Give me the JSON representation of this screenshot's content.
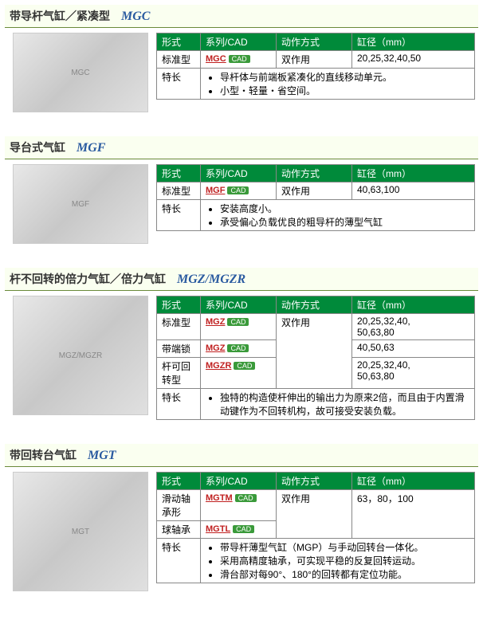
{
  "headers": {
    "type": "形式",
    "series": "系列/CAD",
    "action": "动作方式",
    "bore": "缸径（mm）",
    "features": "特长"
  },
  "cad_label": "CAD",
  "action_double": "双作用",
  "sections": [
    {
      "title": "带导杆气缸／紧凑型",
      "model": "MGC",
      "img_label": "MGC",
      "img_tall": false,
      "rows": [
        {
          "type": "标准型",
          "series": "MGC",
          "action_span": 1,
          "bore": "20,25,32,40,50"
        }
      ],
      "features": [
        "导杆体与前端板紧凑化的直线移动单元。",
        "小型・轻量・省空间。"
      ]
    },
    {
      "title": "导台式气缸",
      "model": "MGF",
      "img_label": "MGF",
      "img_tall": false,
      "rows": [
        {
          "type": "标准型",
          "series": "MGF",
          "action_span": 1,
          "bore": "40,63,100"
        }
      ],
      "features": [
        "安装高度小。",
        "承受偏心负载优良的粗导杆的薄型气缸"
      ]
    },
    {
      "title": "杆不回转的倍力气缸／倍力气缸",
      "model": "MGZ/MGZR",
      "img_label": "MGZ/MGZR",
      "img_tall": true,
      "rows": [
        {
          "type": "标准型",
          "series": "MGZ",
          "action_span": 3,
          "bore": "20,25,32,40,\n50,63,80"
        },
        {
          "type": "带端锁",
          "series": "MGZ",
          "bore": "40,50,63"
        },
        {
          "type": "杆可回转型",
          "series": "MGZR",
          "bore": "20,25,32,40,\n50,63,80"
        }
      ],
      "features": [
        "独特的构造使杆伸出的输出力为原来2倍，而且由于内置滑动键作为不回转机构，故可接受安装负载。"
      ]
    },
    {
      "title": "带回转台气缸",
      "model": "MGT",
      "img_label": "MGT",
      "img_tall": true,
      "rows": [
        {
          "type": "滑动轴承形",
          "series": "MGTM",
          "action_span": 2,
          "bore": "63，80，100"
        },
        {
          "type": "球轴承",
          "series": "MGTL",
          "bore": ""
        }
      ],
      "bore_merge": true,
      "features": [
        "带导杆薄型气缸（MGP）与手动回转台一体化。",
        "采用高精度轴承，可实现平稳的反复回转运动。",
        "滑台部对每90°、180°的回转都有定位功能。"
      ]
    }
  ]
}
